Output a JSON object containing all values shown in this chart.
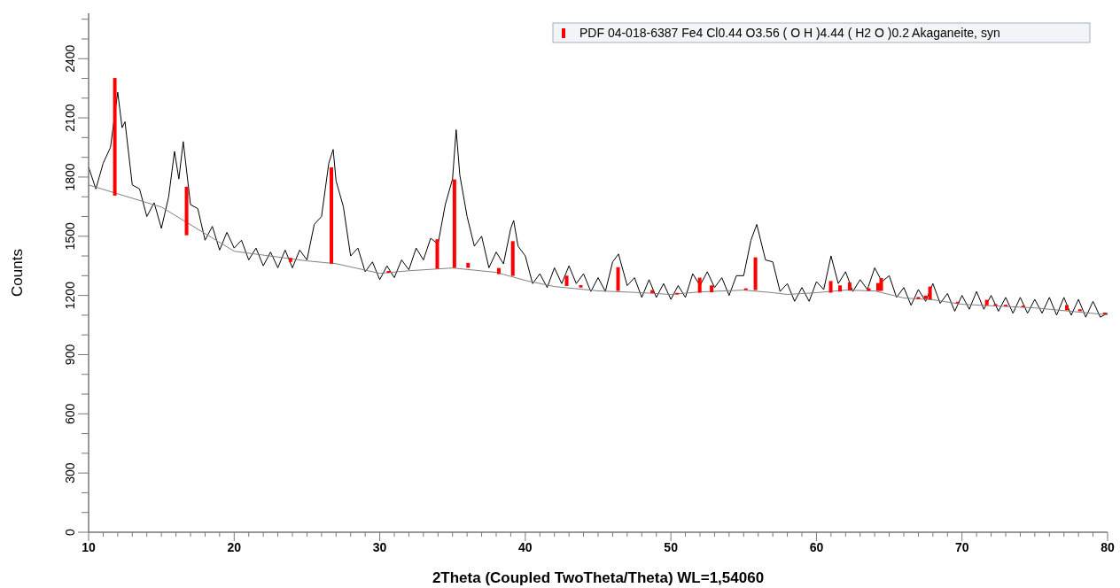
{
  "chart_data": {
    "type": "line",
    "xlabel": "2Theta (Coupled TwoTheta/Theta) WL=1,54060",
    "ylabel": "Counts",
    "xlim": [
      10,
      80
    ],
    "ylim": [
      0,
      2630
    ],
    "xticks": [
      10,
      {
        "value": 11,
        "label": null
      },
      {
        "value": 12,
        "label": null
      },
      {
        "value": 13,
        "label": null
      },
      {
        "value": 14,
        "label": null
      },
      {
        "value": 15,
        "label": null
      },
      {
        "value": 16,
        "label": null
      },
      {
        "value": 17,
        "label": null
      },
      {
        "value": 18,
        "label": null
      },
      {
        "value": 19,
        "label": null
      },
      20,
      {
        "value": 21,
        "label": null
      },
      {
        "value": 22,
        "label": null
      },
      {
        "value": 23,
        "label": null
      },
      {
        "value": 24,
        "label": null
      },
      {
        "value": 25,
        "label": null
      },
      {
        "value": 26,
        "label": null
      },
      {
        "value": 27,
        "label": null
      },
      {
        "value": 28,
        "label": null
      },
      {
        "value": 29,
        "label": null
      },
      30,
      {
        "value": 31,
        "label": null
      },
      {
        "value": 32,
        "label": null
      },
      {
        "value": 33,
        "label": null
      },
      {
        "value": 34,
        "label": null
      },
      {
        "value": 35,
        "label": null
      },
      {
        "value": 36,
        "label": null
      },
      {
        "value": 37,
        "label": null
      },
      {
        "value": 38,
        "label": null
      },
      {
        "value": 39,
        "label": null
      },
      40,
      {
        "value": 41,
        "label": null
      },
      {
        "value": 42,
        "label": null
      },
      {
        "value": 43,
        "label": null
      },
      {
        "value": 44,
        "label": null
      },
      {
        "value": 45,
        "label": null
      },
      {
        "value": 46,
        "label": null
      },
      {
        "value": 47,
        "label": null
      },
      {
        "value": 48,
        "label": null
      },
      {
        "value": 49,
        "label": null
      },
      50,
      {
        "value": 51,
        "label": null
      },
      {
        "value": 52,
        "label": null
      },
      {
        "value": 53,
        "label": null
      },
      {
        "value": 54,
        "label": null
      },
      {
        "value": 55,
        "label": null
      },
      {
        "value": 56,
        "label": null
      },
      {
        "value": 57,
        "label": null
      },
      {
        "value": 58,
        "label": null
      },
      {
        "value": 59,
        "label": null
      },
      60,
      {
        "value": 61,
        "label": null
      },
      {
        "value": 62,
        "label": null
      },
      {
        "value": 63,
        "label": null
      },
      {
        "value": 64,
        "label": null
      },
      {
        "value": 65,
        "label": null
      },
      {
        "value": 66,
        "label": null
      },
      {
        "value": 67,
        "label": null
      },
      {
        "value": 68,
        "label": null
      },
      {
        "value": 69,
        "label": null
      },
      70,
      {
        "value": 71,
        "label": null
      },
      {
        "value": 72,
        "label": null
      },
      {
        "value": 73,
        "label": null
      },
      {
        "value": 74,
        "label": null
      },
      {
        "value": 75,
        "label": null
      },
      {
        "value": 76,
        "label": null
      },
      {
        "value": 77,
        "label": null
      },
      {
        "value": 78,
        "label": null
      },
      {
        "value": 79,
        "label": null
      },
      80
    ],
    "yticks": [
      0,
      {
        "value": 100,
        "label": null
      },
      {
        "value": 200,
        "label": null
      },
      300,
      {
        "value": 400,
        "label": null
      },
      {
        "value": 500,
        "label": null
      },
      600,
      {
        "value": 700,
        "label": null
      },
      {
        "value": 800,
        "label": null
      },
      900,
      {
        "value": 1000,
        "label": null
      },
      {
        "value": 1100,
        "label": null
      },
      1200,
      {
        "value": 1300,
        "label": null
      },
      {
        "value": 1400,
        "label": null
      },
      1500,
      {
        "value": 1600,
        "label": null
      },
      {
        "value": 1700,
        "label": null
      },
      1800,
      {
        "value": 1900,
        "label": null
      },
      {
        "value": 2000,
        "label": null
      },
      2100,
      {
        "value": 2200,
        "label": null
      },
      {
        "value": 2300,
        "label": null
      },
      2400,
      {
        "value": 2500,
        "label": null
      },
      {
        "value": 2600,
        "label": null
      }
    ],
    "legend": "top right",
    "series": [
      {
        "color": "#000000",
        "x": [
          10,
          10.5,
          11,
          11.5,
          12,
          12.3,
          12.5,
          13,
          13.5,
          14,
          14.5,
          15,
          15.5,
          15.9,
          16.2,
          16.5,
          17,
          17.5,
          18,
          18.5,
          19,
          19.5,
          20,
          20.5,
          21,
          21.5,
          22,
          22.5,
          23,
          23.5,
          24,
          24.5,
          25,
          25.5,
          26,
          26.5,
          26.8,
          27,
          27.5,
          28,
          28.5,
          29,
          29.5,
          30,
          30.5,
          31,
          31.5,
          32,
          32.5,
          33,
          33.5,
          34,
          34.5,
          35,
          35.25,
          35.5,
          36,
          36.5,
          37,
          37.5,
          38,
          38.5,
          39,
          39.2,
          39.5,
          40,
          40.5,
          41,
          41.5,
          42,
          42.5,
          43,
          43.5,
          44,
          44.5,
          45,
          45.5,
          46,
          46.4,
          47,
          47.5,
          48,
          48.5,
          49,
          49.5,
          50,
          50.5,
          51,
          51.5,
          52,
          52.5,
          53,
          53.5,
          54,
          54.5,
          55,
          55.5,
          55.9,
          56.5,
          57,
          57.5,
          58,
          58.5,
          59,
          59.5,
          60,
          60.5,
          61,
          61.5,
          62,
          62.5,
          63,
          63.5,
          64,
          64.5,
          65,
          65.5,
          66,
          66.5,
          67,
          67.5,
          68,
          68.5,
          69,
          69.5,
          70,
          70.5,
          71,
          71.5,
          72,
          72.5,
          73,
          73.5,
          74,
          74.5,
          75,
          75.5,
          76,
          76.5,
          77,
          77.5,
          78,
          78.5,
          79,
          79.5,
          80
        ],
        "values": [
          1850,
          1740,
          1870,
          1950,
          2230,
          2050,
          2080,
          1760,
          1740,
          1600,
          1670,
          1540,
          1700,
          1930,
          1790,
          1980,
          1660,
          1640,
          1480,
          1550,
          1430,
          1520,
          1440,
          1480,
          1380,
          1440,
          1350,
          1420,
          1340,
          1430,
          1340,
          1430,
          1380,
          1560,
          1600,
          1870,
          1940,
          1780,
          1650,
          1400,
          1440,
          1320,
          1370,
          1280,
          1350,
          1290,
          1380,
          1330,
          1440,
          1380,
          1490,
          1460,
          1660,
          1790,
          2040,
          1810,
          1600,
          1450,
          1500,
          1340,
          1420,
          1360,
          1540,
          1580,
          1450,
          1400,
          1260,
          1310,
          1240,
          1340,
          1260,
          1350,
          1260,
          1310,
          1220,
          1290,
          1220,
          1370,
          1410,
          1250,
          1290,
          1190,
          1280,
          1190,
          1260,
          1180,
          1250,
          1190,
          1310,
          1250,
          1320,
          1240,
          1290,
          1200,
          1300,
          1300,
          1480,
          1560,
          1380,
          1370,
          1220,
          1260,
          1170,
          1240,
          1170,
          1270,
          1230,
          1400,
          1260,
          1320,
          1220,
          1280,
          1230,
          1340,
          1270,
          1300,
          1190,
          1240,
          1150,
          1230,
          1170,
          1260,
          1160,
          1210,
          1120,
          1200,
          1130,
          1220,
          1130,
          1200,
          1120,
          1190,
          1110,
          1190,
          1110,
          1180,
          1110,
          1190,
          1100,
          1190,
          1100,
          1180,
          1090,
          1170,
          1090,
          1110
        ]
      },
      {
        "color": "#808080",
        "x": [
          10,
          15,
          20,
          25,
          27,
          30,
          32,
          35,
          38,
          40,
          42,
          45,
          48,
          50,
          52,
          55,
          57,
          58,
          60,
          62,
          64,
          66,
          68,
          70,
          75,
          80
        ],
        "values": [
          1760,
          1648,
          1424,
          1375,
          1361,
          1312,
          1325,
          1339,
          1317,
          1276,
          1245,
          1223,
          1214,
          1205,
          1218,
          1227,
          1214,
          1205,
          1214,
          1227,
          1223,
          1187,
          1178,
          1155,
          1137,
          1102
        ]
      },
      {
        "type": "bar",
        "name": "PDF 04-018-6387 Fe4 Cl0.44 O3.56 ( O H )4.44 ( H2 O )0.2 Akaganeite, syn",
        "color": "#ff0000",
        "x": [
          11.8,
          16.73,
          23.87,
          26.68,
          30.6,
          33.95,
          35.13,
          36.07,
          38.18,
          39.14,
          42.84,
          43.81,
          46.37,
          48.72,
          50.43,
          51.98,
          52.8,
          55.15,
          55.81,
          60.98,
          61.62,
          62.28,
          63.59,
          64.23,
          64.45,
          67.0,
          67.5,
          67.8,
          69.7,
          71.7,
          72.3,
          73.0,
          74.2,
          77.2,
          78.1,
          79.8
        ],
        "base": [
          1706,
          1505,
          1370,
          1361,
          1314,
          1335,
          1340,
          1340,
          1308,
          1299,
          1248,
          1240,
          1223,
          1212,
          1205,
          1214,
          1216,
          1227,
          1227,
          1214,
          1220,
          1225,
          1223,
          1223,
          1223,
          1182,
          1182,
          1180,
          1160,
          1150,
          1148,
          1145,
          1140,
          1125,
          1120,
          1105
        ],
        "values": [
          596,
          246,
          20,
          488,
          10,
          150,
          448,
          25,
          31,
          176,
          52,
          12,
          120,
          15,
          8,
          76,
          35,
          9,
          166,
          59,
          31,
          41,
          13,
          40,
          65,
          10,
          17,
          65,
          8,
          28,
          8,
          8,
          8,
          26,
          10,
          8
        ]
      }
    ]
  }
}
